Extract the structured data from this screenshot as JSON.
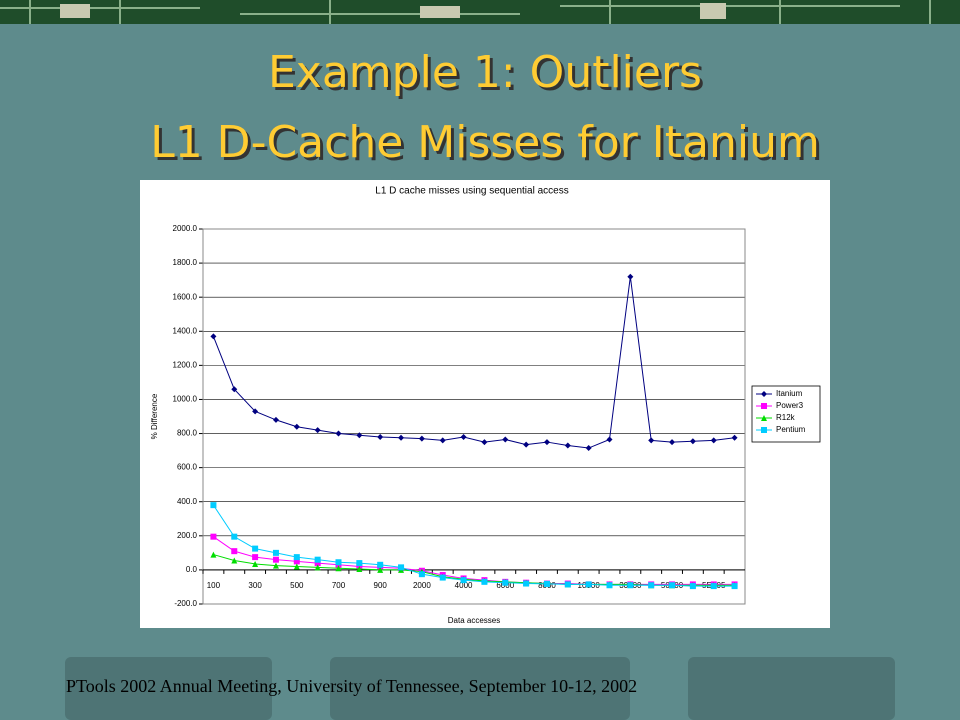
{
  "slide": {
    "title_lines": [
      "Example 1: Outliers",
      "L1 D-Cache Misses for Itanium"
    ],
    "footer": "PTools 2002 Annual Meeting, University of Tennessee, September 10-12, 2002"
  },
  "chart_data": {
    "type": "line",
    "title": "L1 D cache misses using sequential access",
    "y_label": "% Difference",
    "x_label": "Data accesses",
    "categories": [
      "100",
      null,
      "300",
      null,
      "500",
      null,
      "700",
      null,
      "900",
      null,
      "2000",
      null,
      "4000",
      null,
      "6000",
      null,
      "8000",
      null,
      "10000",
      null,
      "30000",
      null,
      "50000",
      null,
      "5E+05",
      null
    ],
    "series": [
      {
        "name": "Itanium",
        "color": "#000080",
        "marker": "diamond",
        "values": [
          1370,
          1060,
          930,
          880,
          840,
          820,
          800,
          790,
          780,
          775,
          770,
          760,
          780,
          750,
          765,
          735,
          750,
          730,
          715,
          765,
          1720,
          760,
          750,
          755,
          760,
          775
        ]
      },
      {
        "name": "Power3",
        "color": "#ff00ff",
        "marker": "square",
        "values": [
          195,
          110,
          75,
          60,
          50,
          40,
          30,
          20,
          15,
          10,
          -5,
          -30,
          -50,
          -60,
          -70,
          -75,
          -80,
          -80,
          -85,
          -85,
          -85,
          -85,
          -85,
          -85,
          -85,
          -85
        ]
      },
      {
        "name": "R12k",
        "color": "#00dd00",
        "marker": "triangle",
        "values": [
          90,
          55,
          35,
          25,
          20,
          15,
          10,
          5,
          0,
          0,
          -10,
          -40,
          -55,
          -65,
          -70,
          -75,
          -80,
          -85,
          -85,
          -85,
          -85,
          -90,
          -90,
          -90,
          -90,
          -90
        ]
      },
      {
        "name": "Pentium",
        "color": "#00ccff",
        "marker": "square",
        "values": [
          380,
          195,
          125,
          100,
          75,
          60,
          45,
          40,
          30,
          15,
          -25,
          -45,
          -60,
          -70,
          -75,
          -80,
          -82,
          -85,
          -85,
          -90,
          -90,
          -90,
          -90,
          -95,
          -95,
          -95
        ]
      }
    ],
    "ylim": [
      -200,
      2000
    ],
    "yticks": [
      {
        "value": -200,
        "label": "-200.0"
      },
      {
        "value": 0,
        "label": "0.0"
      },
      {
        "value": 200,
        "label": "200.0"
      },
      {
        "value": 400,
        "label": "400.0"
      },
      {
        "value": 600,
        "label": "600.0"
      },
      {
        "value": 800,
        "label": "800.0"
      },
      {
        "value": 1000,
        "label": "1000.0"
      },
      {
        "value": 1200,
        "label": "1200.0"
      },
      {
        "value": 1400,
        "label": "1400.0"
      },
      {
        "value": 1600,
        "label": "1600.0"
      },
      {
        "value": 1800,
        "label": "1800.0"
      },
      {
        "value": 2000,
        "label": "2000.0"
      }
    ],
    "grid": true,
    "legend": "right"
  }
}
